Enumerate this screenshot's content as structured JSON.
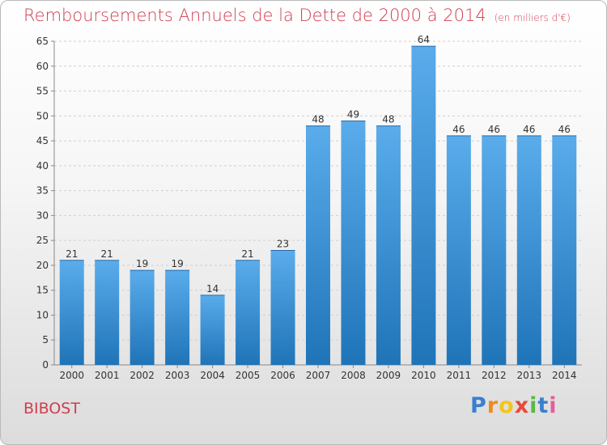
{
  "header": {
    "title": "Remboursements Annuels de la Dette de 2000 à 2014",
    "unit": "(en milliers d'€)"
  },
  "footer": {
    "commune": "BIBOST",
    "brand": "Proxiti",
    "brand_letters": [
      "P",
      "r",
      "o",
      "x",
      "i",
      "t",
      "i"
    ],
    "brand_colors": [
      "#3a7fd0",
      "#f08a1c",
      "#f5c518",
      "#e8483b",
      "#59b947",
      "#3a7fd0",
      "#e95b9b"
    ]
  },
  "colors": {
    "bar_light": "#5aaceb",
    "bar_dark": "#1f74b8",
    "text": "#d03e4e"
  },
  "chart_data": {
    "type": "bar",
    "categories": [
      "2000",
      "2001",
      "2002",
      "2003",
      "2004",
      "2005",
      "2006",
      "2007",
      "2008",
      "2009",
      "2010",
      "2011",
      "2012",
      "2013",
      "2014"
    ],
    "values": [
      21,
      21,
      19,
      19,
      14,
      21,
      23,
      48,
      49,
      48,
      64,
      46,
      46,
      46,
      46
    ],
    "ylim": [
      0,
      65
    ],
    "yticks": [
      0,
      5,
      10,
      15,
      20,
      25,
      30,
      35,
      40,
      45,
      50,
      55,
      60,
      65
    ],
    "grid": true
  }
}
